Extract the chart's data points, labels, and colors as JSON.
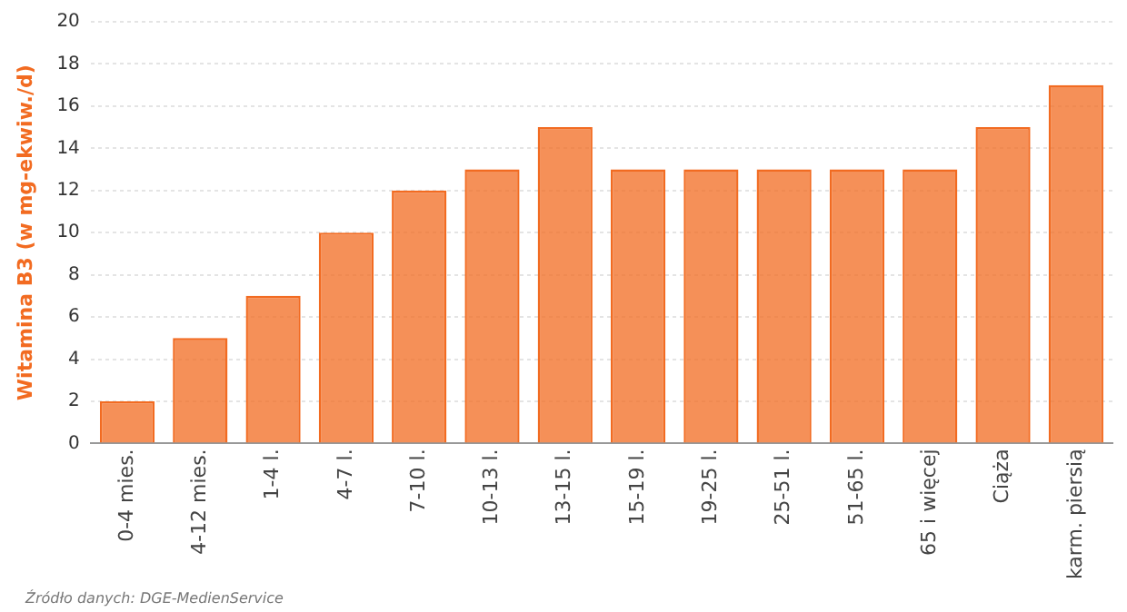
{
  "chart_data": {
    "type": "bar",
    "ylabel": "Witamina B3 (w mg-ekwiw./d)",
    "categories": [
      "0-4 mies.",
      "4-12 mies.",
      "1-4 l.",
      "4-7 l.",
      "7-10 l.",
      "10-13 l.",
      "13-15 l.",
      "15-19 l.",
      "19-25 l.",
      "25-51 l.",
      "51-65 l.",
      "65 i więcej",
      "Ciąża",
      "karm. piersią"
    ],
    "values": [
      2,
      5,
      7,
      10,
      12,
      13,
      15,
      13,
      13,
      13,
      13,
      13,
      15,
      17
    ],
    "color": "#f26b21",
    "ylim": [
      0,
      20
    ],
    "yticks": [
      0,
      2,
      4,
      6,
      8,
      10,
      12,
      14,
      16,
      18,
      20
    ],
    "grid": "y",
    "annotations": [
      "Źródło danych: DGE-MedienService"
    ]
  }
}
